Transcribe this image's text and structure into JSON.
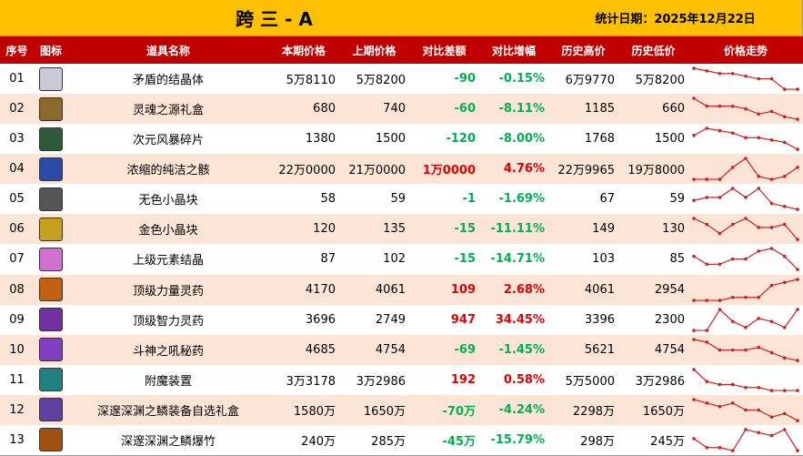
{
  "header": {
    "title": "跨 三 - A",
    "date": "统计日期：2025年12月22日"
  },
  "table": {
    "columns": [
      "序号",
      "图标",
      "道具名称",
      "本期价格",
      "上期价格",
      "对比差额",
      "对比增幅",
      "历史高价",
      "历史低价",
      "价格走势"
    ],
    "rows": [
      {
        "no": "01",
        "name": "矛盾的结晶体",
        "cur": "5万8110",
        "prev": "5万8200",
        "diff": "-90",
        "pct": "-0.15%",
        "high": "6万9770",
        "low": "5万8200",
        "trend": [
          9,
          8,
          7,
          7,
          6,
          5,
          5,
          1,
          1
        ]
      },
      {
        "no": "02",
        "name": "灵魂之源礼盒",
        "cur": "680",
        "prev": "740",
        "diff": "-60",
        "pct": "-8.11%",
        "high": "1185",
        "low": "660",
        "trend": [
          9,
          6,
          6,
          6,
          5,
          3,
          4,
          2,
          1
        ]
      },
      {
        "no": "03",
        "name": "次元风暴碎片",
        "cur": "1380",
        "prev": "1500",
        "diff": "-120",
        "pct": "-8.00%",
        "high": "1768",
        "low": "1500",
        "trend": [
          7,
          10,
          9,
          8,
          6,
          6,
          5,
          4,
          1
        ]
      },
      {
        "no": "04",
        "name": "浓缩的纯洁之骸",
        "cur": "22万0000",
        "prev": "21万0000",
        "diff": "1万0000",
        "pct": "4.76%",
        "high": "22万9965",
        "low": "19万8000",
        "trend": [
          2,
          2,
          2,
          6,
          9,
          3,
          2,
          3,
          6
        ]
      },
      {
        "no": "05",
        "name": "无色小晶块",
        "cur": "58",
        "prev": "59",
        "diff": "-1",
        "pct": "-1.69%",
        "high": "67",
        "low": "59",
        "trend": [
          5,
          6,
          6,
          9,
          6,
          9,
          4,
          3,
          2
        ]
      },
      {
        "no": "06",
        "name": "金色小晶块",
        "cur": "120",
        "prev": "135",
        "diff": "-15",
        "pct": "-11.11%",
        "high": "149",
        "low": "130",
        "trend": [
          9,
          7,
          4,
          7,
          9,
          6,
          6,
          7,
          2
        ]
      },
      {
        "no": "07",
        "name": "上级元素结晶",
        "cur": "87",
        "prev": "102",
        "diff": "-15",
        "pct": "-14.71%",
        "high": "103",
        "low": "85",
        "trend": [
          6,
          3,
          3,
          5,
          5,
          8,
          9,
          6,
          1
        ]
      },
      {
        "no": "08",
        "name": "顶级力量灵药",
        "cur": "4170",
        "prev": "4061",
        "diff": "109",
        "pct": "2.68%",
        "high": "4061",
        "low": "2954",
        "trend": [
          2,
          2,
          2,
          3,
          3,
          3,
          7,
          8,
          9
        ]
      },
      {
        "no": "09",
        "name": "顶级智力灵药",
        "cur": "3696",
        "prev": "2749",
        "diff": "947",
        "pct": "34.45%",
        "high": "3396",
        "low": "2300",
        "trend": [
          2,
          2,
          9,
          5,
          3,
          6,
          5,
          3,
          9
        ]
      },
      {
        "no": "10",
        "name": "斗神之吼秘药",
        "cur": "4685",
        "prev": "4754",
        "diff": "-69",
        "pct": "-1.45%",
        "high": "5621",
        "low": "4754",
        "trend": [
          10,
          9,
          6,
          6,
          6,
          7,
          5,
          3,
          2
        ]
      },
      {
        "no": "11",
        "name": "附魔装置",
        "cur": "3万3178",
        "prev": "3万2986",
        "diff": "192",
        "pct": "0.58%",
        "high": "5万5000",
        "low": "3万2986",
        "trend": [
          9,
          5,
          4,
          4,
          3,
          3,
          2,
          2,
          2
        ]
      },
      {
        "no": "12",
        "name": "深邃深渊之鳞装备自选礼盒",
        "cur": "1580万",
        "prev": "1650万",
        "diff": "-70万",
        "pct": "-4.24%",
        "high": "2298万",
        "low": "1650万",
        "trend": [
          8,
          7,
          6,
          7,
          5,
          5,
          3,
          4,
          2
        ]
      },
      {
        "no": "13",
        "name": "深邃深渊之鳞爆竹",
        "cur": "240万",
        "prev": "285万",
        "diff": "-45万",
        "pct": "-15.79%",
        "high": "298万",
        "low": "245万",
        "trend": [
          6,
          3,
          3,
          2,
          9,
          8,
          7,
          9,
          2
        ]
      }
    ]
  }
}
